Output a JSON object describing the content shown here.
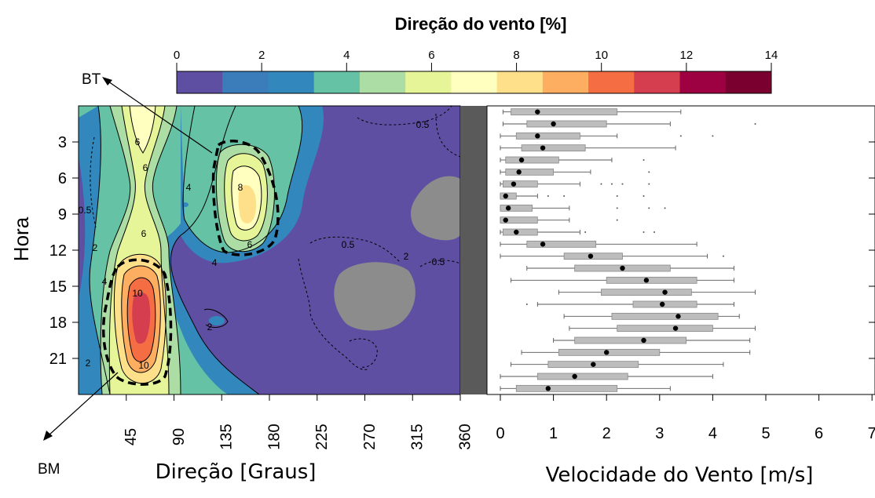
{
  "colorbar": {
    "title": "Direção do vento [%]",
    "ticks": [
      "0",
      "2",
      "4",
      "6",
      "8",
      "10",
      "12",
      "14"
    ],
    "colors": [
      "#5e4fa2",
      "#3b7dbb",
      "#3288bd",
      "#66c2a5",
      "#abdda4",
      "#e6f598",
      "#ffffbf",
      "#fee08b",
      "#fdae61",
      "#f46d43",
      "#d53e4f",
      "#9e0142",
      "#7a0030"
    ]
  },
  "annotations": {
    "bt": "BT",
    "bm": "BM"
  },
  "contour_labels": [
    "6",
    "6",
    "4",
    "2",
    "6",
    "8",
    "6",
    "4",
    "2",
    "4",
    "2",
    "10",
    "10",
    "0.5",
    "0.5",
    "0.5",
    "0.5",
    "2"
  ],
  "chart_data": [
    {
      "type": "heatmap",
      "xlabel": "Direção [Graus]",
      "ylabel": "Hora",
      "x_ticks": [
        "45",
        "90",
        "135",
        "180",
        "225",
        "270",
        "315",
        "360"
      ],
      "y_ticks": [
        "3",
        "6",
        "9",
        "12",
        "15",
        "18",
        "21"
      ],
      "xlim": [
        0,
        360
      ],
      "ylim": [
        0,
        24
      ],
      "regions": [
        {
          "name": "BT",
          "direction_center": 160,
          "hour_range": [
            4,
            12
          ],
          "max_percent": 8.5
        },
        {
          "name": "BM",
          "direction_center": 55,
          "hour_range": [
            14,
            23
          ],
          "max_percent": 11
        }
      ]
    },
    {
      "type": "box",
      "xlabel": "Velocidade do Vento [m/s]",
      "x_ticks": [
        "0",
        "1",
        "2",
        "3",
        "4",
        "5",
        "6",
        "7"
      ],
      "xlim": [
        0,
        7
      ],
      "hours": [
        1,
        2,
        3,
        4,
        5,
        6,
        7,
        8,
        9,
        10,
        11,
        12,
        13,
        14,
        15,
        16,
        17,
        18,
        19,
        20,
        21,
        22,
        23,
        24
      ],
      "boxes": [
        {
          "hour": 1,
          "min": 0.05,
          "q1": 0.2,
          "median": 0.7,
          "q3": 2.2,
          "max": 3.4
        },
        {
          "hour": 2,
          "min": 0.05,
          "q1": 0.5,
          "median": 1.0,
          "q3": 2.0,
          "max": 3.2
        },
        {
          "hour": 3,
          "min": 0.0,
          "q1": 0.3,
          "median": 0.7,
          "q3": 1.5,
          "max": 2.2
        },
        {
          "hour": 4,
          "min": 0.0,
          "q1": 0.4,
          "median": 0.8,
          "q3": 1.6,
          "max": 3.3
        },
        {
          "hour": 5,
          "min": 0.0,
          "q1": 0.1,
          "median": 0.4,
          "q3": 1.1,
          "max": 2.1
        },
        {
          "hour": 6,
          "min": 0.0,
          "q1": 0.1,
          "median": 0.35,
          "q3": 1.0,
          "max": 1.7
        },
        {
          "hour": 7,
          "min": 0.0,
          "q1": 0.05,
          "median": 0.25,
          "q3": 0.7,
          "max": 1.5
        },
        {
          "hour": 8,
          "min": 0.0,
          "q1": 0.0,
          "median": 0.1,
          "q3": 0.3,
          "max": 0.7
        },
        {
          "hour": 9,
          "min": 0.0,
          "q1": 0.0,
          "median": 0.15,
          "q3": 0.6,
          "max": 1.3
        },
        {
          "hour": 10,
          "min": 0.0,
          "q1": 0.0,
          "median": 0.1,
          "q3": 0.7,
          "max": 1.3
        },
        {
          "hour": 11,
          "min": 0.0,
          "q1": 0.05,
          "median": 0.3,
          "q3": 0.7,
          "max": 1.5
        },
        {
          "hour": 12,
          "min": 0.0,
          "q1": 0.5,
          "median": 0.8,
          "q3": 1.8,
          "max": 3.7
        },
        {
          "hour": 13,
          "min": 0.0,
          "q1": 1.2,
          "median": 1.7,
          "q3": 2.3,
          "max": 3.9
        },
        {
          "hour": 14,
          "min": 0.5,
          "q1": 1.4,
          "median": 2.3,
          "q3": 3.2,
          "max": 4.4
        },
        {
          "hour": 15,
          "min": 0.2,
          "q1": 2.0,
          "median": 2.75,
          "q3": 3.7,
          "max": 4.4
        },
        {
          "hour": 16,
          "min": 1.1,
          "q1": 1.9,
          "median": 3.1,
          "q3": 3.6,
          "max": 4.8
        },
        {
          "hour": 17,
          "min": 0.7,
          "q1": 2.5,
          "median": 3.05,
          "q3": 3.7,
          "max": 4.4
        },
        {
          "hour": 18,
          "min": 1.2,
          "q1": 2.1,
          "median": 3.35,
          "q3": 4.1,
          "max": 4.5
        },
        {
          "hour": 19,
          "min": 1.3,
          "q1": 2.2,
          "median": 3.3,
          "q3": 4.0,
          "max": 4.8
        },
        {
          "hour": 20,
          "min": 1.0,
          "q1": 1.4,
          "median": 2.7,
          "q3": 3.5,
          "max": 4.7
        },
        {
          "hour": 21,
          "min": 0.4,
          "q1": 1.1,
          "median": 2.0,
          "q3": 3.0,
          "max": 4.7
        },
        {
          "hour": 22,
          "min": 0.2,
          "q1": 0.9,
          "median": 1.75,
          "q3": 2.6,
          "max": 4.2
        },
        {
          "hour": 23,
          "min": 0.0,
          "q1": 0.7,
          "median": 1.4,
          "q3": 2.4,
          "max": 4.0
        },
        {
          "hour": 24,
          "min": 0.0,
          "q1": 0.3,
          "median": 0.9,
          "q3": 2.2,
          "max": 3.2
        }
      ],
      "outliers": [
        {
          "hour": 2,
          "v": 4.8
        },
        {
          "hour": 3,
          "v": 3.4
        },
        {
          "hour": 3,
          "v": 4.0
        },
        {
          "hour": 5,
          "v": 2.7
        },
        {
          "hour": 6,
          "v": 2.8
        },
        {
          "hour": 7,
          "v": 1.9
        },
        {
          "hour": 7,
          "v": 2.1
        },
        {
          "hour": 7,
          "v": 2.3
        },
        {
          "hour": 7,
          "v": 2.8
        },
        {
          "hour": 8,
          "v": 0.9
        },
        {
          "hour": 8,
          "v": 1.2
        },
        {
          "hour": 8,
          "v": 2.2
        },
        {
          "hour": 8,
          "v": 2.7
        },
        {
          "hour": 9,
          "v": 2.2
        },
        {
          "hour": 9,
          "v": 2.8
        },
        {
          "hour": 9,
          "v": 3.1
        },
        {
          "hour": 10,
          "v": 2.2
        },
        {
          "hour": 11,
          "v": 1.6
        },
        {
          "hour": 11,
          "v": 2.7
        },
        {
          "hour": 11,
          "v": 2.9
        },
        {
          "hour": 13,
          "v": 4.2
        },
        {
          "hour": 17,
          "v": 0.5
        }
      ]
    }
  ]
}
